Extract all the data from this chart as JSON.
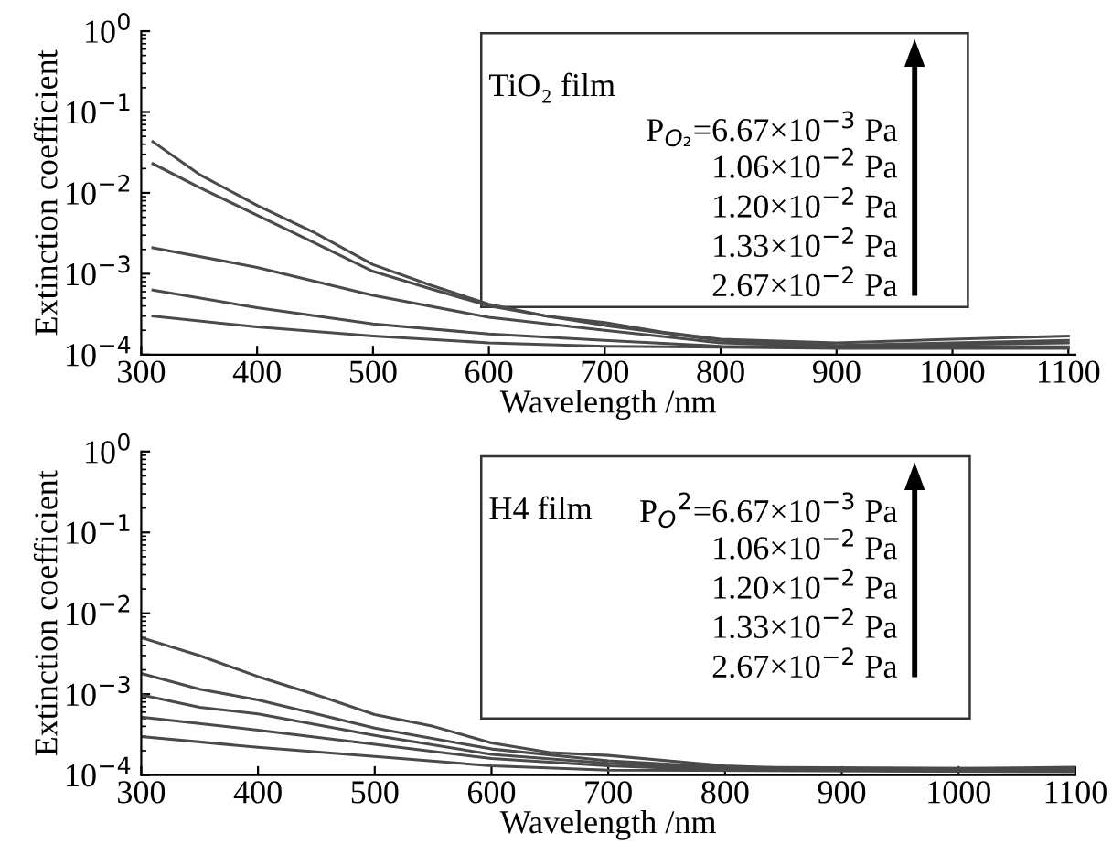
{
  "chart_data": [
    {
      "type": "line",
      "xlabel": "Wavelength /nm",
      "ylabel": "Extinction coefficient",
      "log": "y",
      "grid": false,
      "legend": false,
      "xlim": [
        300,
        1106
      ],
      "ylim": [
        0.0001,
        1
      ],
      "xticks": [
        300,
        400,
        500,
        600,
        700,
        800,
        900,
        1000,
        1100
      ],
      "yticks": [
        {
          "value": 0.0001,
          "label": "10$^{−4}$"
        },
        {
          "value": 0.001,
          "label": "10$^{−3}$"
        },
        {
          "value": 0.01,
          "label": "10$^{−2}$"
        },
        {
          "value": 0.1,
          "label": "10$^{−1}$"
        },
        {
          "value": 1,
          "label": "10$^{0}$"
        }
      ],
      "annotations": [
        "TiO₂ film",
        "P$_{O₂}$=6.67×10$^{−3}$ Pa",
        "1.06×10$^{−2}$ Pa",
        "1.20×10$^{−2}$ Pa",
        "1.33×10$^{−2}$ Pa",
        "2.67×10$^{−2}$ Pa"
      ],
      "series": [
        {
          "color": "#4a4a4a",
          "x": [
            310,
            350,
            400,
            450,
            500,
            550,
            600,
            650,
            700,
            750,
            800,
            900,
            1000,
            1100
          ],
          "values": [
            0.043,
            0.017,
            0.007,
            0.0032,
            0.0013,
            0.00072,
            0.00042,
            0.0003,
            0.00025,
            0.00019,
            0.000155,
            0.00014,
            0.000155,
            0.00017
          ]
        },
        {
          "color": "#4a4a4a",
          "x": [
            310,
            350,
            400,
            450,
            500,
            550,
            600,
            650,
            700,
            800,
            900,
            1000,
            1100
          ],
          "values": [
            0.023,
            0.0117,
            0.0053,
            0.0024,
            0.00107,
            0.00065,
            0.0004,
            0.0003,
            0.00023,
            0.00015,
            0.00013,
            0.00014,
            0.00015
          ]
        },
        {
          "color": "#4a4a4a",
          "x": [
            310,
            400,
            500,
            600,
            700,
            800,
            900,
            1100
          ],
          "values": [
            0.0021,
            0.0012,
            0.00054,
            0.00029,
            0.0002,
            0.00014,
            0.000127,
            0.00014
          ]
        },
        {
          "color": "#4a4a4a",
          "x": [
            310,
            400,
            500,
            600,
            700,
            800,
            1100
          ],
          "values": [
            0.00063,
            0.00038,
            0.00024,
            0.00018,
            0.00015,
            0.000127,
            0.000125
          ]
        },
        {
          "color": "#4a4a4a",
          "x": [
            310,
            400,
            500,
            600,
            700,
            900,
            1100
          ],
          "values": [
            0.0003,
            0.00022,
            0.00017,
            0.00014,
            0.000127,
            0.00012,
            0.00012
          ]
        }
      ]
    },
    {
      "type": "line",
      "xlabel": "Wavelength /nm",
      "ylabel": "Extinction coefficient",
      "log": "y",
      "grid": false,
      "legend": false,
      "xlim": [
        300,
        1100
      ],
      "ylim": [
        0.0001,
        1
      ],
      "xticks": [
        300,
        400,
        500,
        600,
        700,
        800,
        900,
        1000,
        1100
      ],
      "yticks": [
        {
          "value": 0.0001,
          "label": "10$^{−4}$"
        },
        {
          "value": 0.001,
          "label": "10$^{−3}$"
        },
        {
          "value": 0.01,
          "label": "10$^{−2}$"
        },
        {
          "value": 0.1,
          "label": "10$^{−1}$"
        },
        {
          "value": 1,
          "label": "10$^{0}$"
        }
      ],
      "annotations": [
        "H4 film",
        "P$_{O}$$^{2}$=6.67×10$^{−3}$ Pa",
        "1.06×10$^{−2}$ Pa",
        "1.20×10$^{−2}$ Pa",
        "1.33×10$^{−2}$ Pa",
        "2.67×10$^{−2}$ Pa"
      ],
      "series": [
        {
          "color": "#4a4a4a",
          "x": [
            300,
            350,
            400,
            450,
            500,
            550,
            600,
            650,
            700,
            800,
            900,
            1100
          ],
          "values": [
            0.005,
            0.003,
            0.00165,
            0.00098,
            0.00056,
            0.0004,
            0.00025,
            0.00019,
            0.000175,
            0.00013,
            0.000115,
            0.000125
          ]
        },
        {
          "color": "#4a4a4a",
          "x": [
            300,
            350,
            400,
            450,
            500,
            600,
            700,
            800,
            1100
          ],
          "values": [
            0.0018,
            0.00115,
            0.00085,
            0.00057,
            0.00038,
            0.00021,
            0.00015,
            0.000125,
            0.00012
          ]
        },
        {
          "color": "#4a4a4a",
          "x": [
            300,
            350,
            400,
            500,
            600,
            700,
            800,
            1100
          ],
          "values": [
            0.00098,
            0.00069,
            0.00057,
            0.00031,
            0.00018,
            0.00014,
            0.00012,
            0.000117
          ]
        },
        {
          "color": "#4a4a4a",
          "x": [
            300,
            400,
            500,
            600,
            700,
            800,
            1100
          ],
          "values": [
            0.00052,
            0.00036,
            0.00024,
            0.00016,
            0.00013,
            0.000115,
            0.000113
          ]
        },
        {
          "color": "#4a4a4a",
          "x": [
            300,
            400,
            500,
            600,
            700,
            1100
          ],
          "values": [
            0.0003,
            0.00022,
            0.00017,
            0.00013,
            0.000115,
            0.00011
          ]
        }
      ]
    }
  ]
}
